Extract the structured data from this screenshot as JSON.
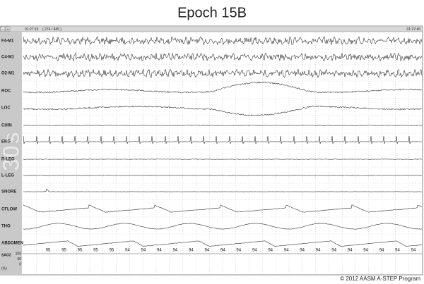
{
  "header": {
    "title": "Epoch 15B"
  },
  "toolbar": {
    "minus": "-",
    "plus": "+",
    "start_time": "01:27:15",
    "page": "( 274 / 845 )",
    "end_time": "01:27:45"
  },
  "watermark": "30s",
  "channels": [
    "F4-M1",
    "C4-M1",
    "O2-M1",
    "ROC",
    "LOC",
    "CHIN",
    "EKG",
    "R-LEG",
    "L-LEG",
    "SNORE",
    "CFLOW",
    "THO",
    "ABDOMEN"
  ],
  "sao2": {
    "label": "SAO2",
    "unit": "(%)",
    "scale": [
      100,
      50,
      0
    ],
    "values": [
      95,
      95,
      95,
      95,
      95,
      94,
      94,
      94,
      94,
      94,
      94,
      94,
      94,
      94,
      94,
      94,
      94,
      94,
      94,
      94,
      94,
      94,
      94,
      94
    ]
  },
  "footer": "© 2012 AASM A-STEP Program"
}
